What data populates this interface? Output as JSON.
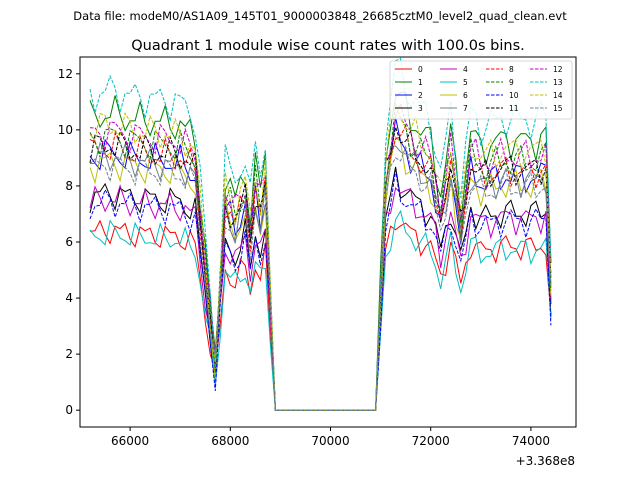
{
  "figure": {
    "suptitle": "Data file: modeM0/AS1A09_145T01_9000003848_26685cztM0_level2_quad_clean.evt"
  },
  "chart_data": {
    "type": "line",
    "title": "Quadrant 1 module wise count rates with 100.0s bins.",
    "xlabel": "",
    "ylabel": "",
    "x_offset_label": "+3.368e8",
    "xlim": [
      65000,
      74900
    ],
    "ylim": [
      -0.6,
      12.6
    ],
    "xticks": [
      66000,
      68000,
      70000,
      72000,
      74000
    ],
    "yticks": [
      0,
      2,
      4,
      6,
      8,
      10,
      12
    ],
    "grid": false,
    "legend": {
      "placement": "top-right",
      "columns": 4
    },
    "anchors": {
      "x": [
        65200,
        65600,
        66000,
        66500,
        67000,
        67300,
        67500,
        67700,
        67900,
        68100,
        68300,
        68400,
        68500,
        68600,
        68700,
        68900,
        69500,
        70000,
        70500,
        70900,
        71100,
        71300,
        71600,
        72000,
        72200,
        72400,
        72600,
        72800,
        73000,
        73500,
        74000,
        74300,
        74450
      ],
      "shape": [
        1.0,
        1.02,
        1.0,
        0.99,
        0.98,
        0.93,
        0.55,
        0.16,
        0.8,
        0.72,
        0.82,
        0.67,
        0.84,
        0.75,
        0.86,
        0.0,
        0.0,
        0.0,
        0.0,
        0.0,
        0.88,
        1.1,
        1.0,
        0.92,
        0.75,
        0.95,
        0.7,
        0.95,
        0.9,
        0.93,
        0.92,
        0.94,
        0.26
      ]
    },
    "series": [
      {
        "name": "0",
        "color": "#ff0000",
        "dash": "solid",
        "level": 6.3
      },
      {
        "name": "1",
        "color": "#008000",
        "dash": "solid",
        "level": 10.4
      },
      {
        "name": "2",
        "color": "#0000ff",
        "dash": "solid",
        "level": 9.0
      },
      {
        "name": "3",
        "color": "#000000",
        "dash": "solid",
        "level": 7.6
      },
      {
        "name": "4",
        "color": "#c000c0",
        "dash": "solid",
        "level": 7.4
      },
      {
        "name": "5",
        "color": "#00bfbf",
        "dash": "solid",
        "level": 6.2
      },
      {
        "name": "6",
        "color": "#bfbf00",
        "dash": "solid",
        "level": 8.7
      },
      {
        "name": "7",
        "color": "#708090",
        "dash": "solid",
        "level": 8.9
      },
      {
        "name": "8",
        "color": "#ff0000",
        "dash": "dashed",
        "level": 9.2
      },
      {
        "name": "9",
        "color": "#008000",
        "dash": "dashed",
        "level": 9.6
      },
      {
        "name": "10",
        "color": "#0000ff",
        "dash": "dashed",
        "level": 7.3
      },
      {
        "name": "11",
        "color": "#000000",
        "dash": "dashed",
        "level": 9.3
      },
      {
        "name": "12",
        "color": "#c000c0",
        "dash": "dashed",
        "level": 9.8
      },
      {
        "name": "13",
        "color": "#00bfbf",
        "dash": "dashed",
        "level": 11.2
      },
      {
        "name": "14",
        "color": "#bfbf00",
        "dash": "dashed",
        "level": 10.0
      },
      {
        "name": "15",
        "color": "#708090",
        "dash": "dashed",
        "level": 8.6
      }
    ]
  }
}
